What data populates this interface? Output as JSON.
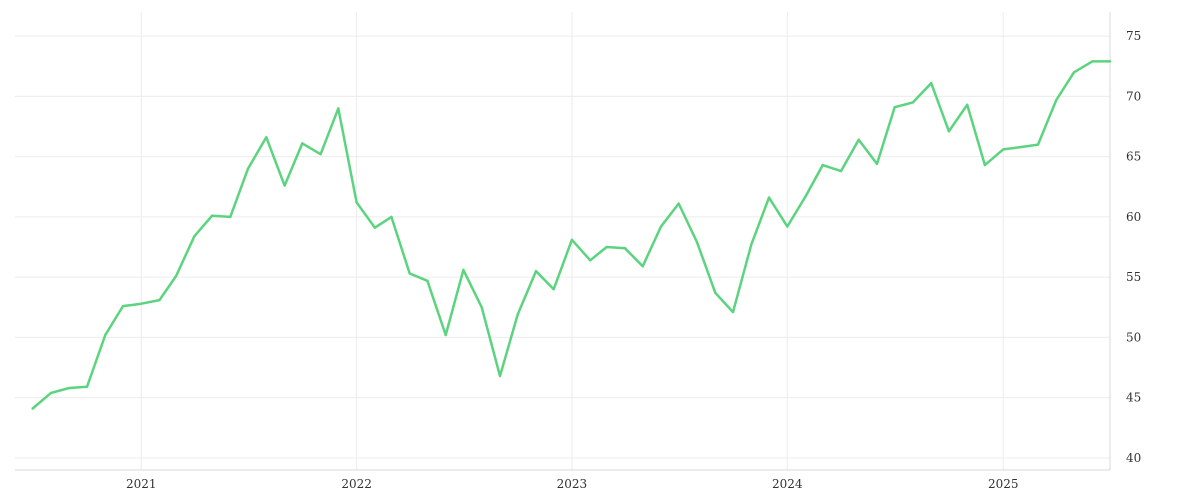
{
  "chart_data": {
    "type": "line",
    "title": "",
    "xlabel": "",
    "ylabel": "",
    "grid": true,
    "legend": "none",
    "color": "#5cd47f",
    "x_ticks": [
      "2021",
      "2022",
      "2023",
      "2024",
      "2025"
    ],
    "y_ticks": [
      "40",
      "45",
      "50",
      "55",
      "60",
      "65",
      "70",
      "75"
    ],
    "ylim": [
      39,
      77
    ],
    "xlim": [
      "2020-06-01",
      "2025-07-01"
    ],
    "series": [
      {
        "x": [
          "2020-07",
          "2020-08",
          "2020-09",
          "2020-10",
          "2020-11",
          "2020-12",
          "2021-01",
          "2021-02",
          "2021-03",
          "2021-04",
          "2021-05",
          "2021-06",
          "2021-07",
          "2021-08",
          "2021-09",
          "2021-10",
          "2021-11",
          "2021-12",
          "2022-01",
          "2022-02",
          "2022-03",
          "2022-04",
          "2022-05",
          "2022-06",
          "2022-07",
          "2022-08",
          "2022-09",
          "2022-10",
          "2022-11",
          "2022-12",
          "2023-01",
          "2023-02",
          "2023-03",
          "2023-04",
          "2023-05",
          "2023-06",
          "2023-07",
          "2023-08",
          "2023-09",
          "2023-10",
          "2023-11",
          "2023-12",
          "2024-01",
          "2024-02",
          "2024-03",
          "2024-04",
          "2024-05",
          "2024-06",
          "2024-07",
          "2024-08",
          "2024-09",
          "2024-10",
          "2024-11",
          "2024-12",
          "2025-01",
          "2025-02",
          "2025-03",
          "2025-04",
          "2025-05",
          "2025-06",
          "2025-07"
        ],
        "values": [
          44.1,
          45.4,
          45.8,
          45.9,
          50.2,
          52.6,
          52.8,
          53.1,
          55.1,
          58.4,
          60.1,
          60.0,
          64.0,
          66.6,
          62.6,
          66.1,
          65.2,
          69.0,
          61.2,
          59.1,
          60.0,
          55.3,
          54.7,
          50.2,
          55.6,
          52.5,
          46.8,
          51.9,
          55.5,
          54.0,
          58.1,
          56.4,
          57.5,
          57.4,
          55.9,
          59.2,
          61.1,
          57.9,
          53.7,
          52.1,
          57.7,
          61.6,
          59.2,
          61.7,
          64.3,
          63.8,
          66.4,
          64.4,
          69.1,
          69.5,
          71.1,
          67.1,
          69.3,
          64.3,
          65.6,
          65.8,
          66.0,
          69.7,
          72.0,
          72.9,
          72.9
        ]
      }
    ]
  }
}
